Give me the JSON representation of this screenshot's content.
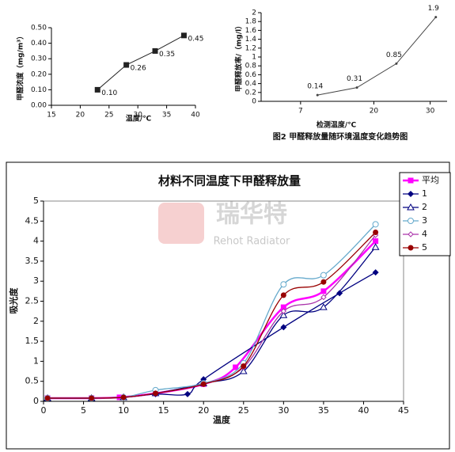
{
  "chart_data": [
    {
      "type": "line",
      "ylabel": "甲醛浓度（mg/m³）",
      "xlabel": "温度/℃",
      "xlim": [
        15,
        40
      ],
      "xticks": [
        15,
        20,
        25,
        30,
        35,
        40
      ],
      "ylim": [
        0,
        0.5
      ],
      "yticks": [
        {
          "value": 0,
          "label": "0.00"
        },
        {
          "value": 0.1,
          "label": "0.10"
        },
        {
          "value": 0.2,
          "label": "0.20"
        },
        {
          "value": 0.3,
          "label": "0.30"
        },
        {
          "value": 0.4,
          "label": "0.40"
        },
        {
          "value": 0.5,
          "label": "0.50"
        }
      ],
      "series": [
        {
          "color": "#222222",
          "marker": "square",
          "x": [
            23,
            28,
            33,
            38
          ],
          "values": [
            0.1,
            0.26,
            0.35,
            0.45
          ],
          "value_labels": [
            "0.10",
            "0.26",
            "0.35",
            "0.45"
          ]
        }
      ]
    },
    {
      "type": "line",
      "ylabel": "甲醛释放率/（mg/l）",
      "xlabel": "检测温度/℃",
      "caption": "图2 甲醛释放量随环境温度变化趋势图",
      "xlim": [
        0,
        33
      ],
      "xticks": [
        7,
        20,
        30
      ],
      "ylim": [
        0,
        2
      ],
      "yticks": [
        0,
        0.2,
        0.4,
        0.6,
        0.8,
        1,
        1.2,
        1.4,
        1.6,
        1.8,
        2
      ],
      "data_labels": true,
      "series": [
        {
          "color": "#444444",
          "marker": "dot",
          "x": [
            10,
            17,
            24,
            31
          ],
          "values": [
            0.14,
            0.31,
            0.85,
            1.9
          ]
        }
      ]
    },
    {
      "type": "line",
      "title": "材料不同温度下甲醛释放量",
      "xlabel": "温度",
      "ylabel": "吸光度",
      "watermark": "瑞华特",
      "watermark_sub": "Rehot Radiator",
      "smooth": true,
      "legend": "right",
      "xlim": [
        0,
        45
      ],
      "xticks": [
        0,
        5,
        10,
        15,
        20,
        25,
        30,
        35,
        40,
        45
      ],
      "ylim": [
        0,
        5
      ],
      "yticks": [
        0,
        0.5,
        1,
        1.5,
        2,
        2.5,
        3,
        3.5,
        4,
        4.5,
        5
      ],
      "series": [
        {
          "name": "平均",
          "color": "#ff00ff",
          "marker": "square",
          "x": [
            0.5,
            6,
            9.5,
            14,
            20,
            24,
            30,
            35,
            41.5
          ],
          "values": [
            0.08,
            0.08,
            0.1,
            0.2,
            0.43,
            0.85,
            2.35,
            2.75,
            4.0
          ]
        },
        {
          "name": "1",
          "color": "#000080",
          "marker": "diamond",
          "x": [
            0.5,
            6,
            10,
            14,
            18,
            20,
            30,
            37,
            41.5
          ],
          "values": [
            0.08,
            0.08,
            0.1,
            0.18,
            0.18,
            0.55,
            1.85,
            2.7,
            3.22
          ]
        },
        {
          "name": "2",
          "color": "#000080",
          "marker": "triangle",
          "x": [
            0.5,
            6,
            10,
            14,
            20,
            25,
            30,
            35,
            41.5
          ],
          "values": [
            0.08,
            0.08,
            0.1,
            0.2,
            0.45,
            0.75,
            2.15,
            2.35,
            3.85
          ]
        },
        {
          "name": "3",
          "color": "#66aacc",
          "marker": "circle",
          "x": [
            0.5,
            6,
            10,
            14,
            20,
            25,
            30,
            35,
            41.5
          ],
          "values": [
            0.08,
            0.08,
            0.1,
            0.28,
            0.45,
            0.95,
            2.92,
            3.15,
            4.42
          ]
        },
        {
          "name": "4",
          "color": "#aa33aa",
          "marker": "smalldiamond",
          "x": [
            0.5,
            6,
            10,
            14,
            20,
            25,
            30,
            35,
            41.5
          ],
          "values": [
            0.08,
            0.08,
            0.1,
            0.2,
            0.43,
            0.85,
            2.25,
            2.6,
            4.15
          ]
        },
        {
          "name": "5",
          "color": "#990000",
          "marker": "filledcircle",
          "x": [
            0.5,
            6,
            10,
            14,
            20,
            25,
            30,
            35,
            41.5
          ],
          "values": [
            0.08,
            0.08,
            0.1,
            0.2,
            0.43,
            0.88,
            2.65,
            2.98,
            4.22
          ]
        }
      ]
    }
  ]
}
